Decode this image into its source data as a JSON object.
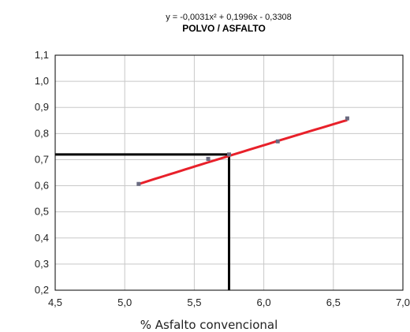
{
  "chart_data": {
    "type": "scatter",
    "equation": "y = -0,0031x² + 0,1996x - 0,3308",
    "title": "POLVO / ASFALTO",
    "xlabel": "% Asfalto convencional",
    "ylabel": "",
    "xlim": [
      4.5,
      7.0
    ],
    "ylim": [
      0.2,
      1.1
    ],
    "x_ticks": [
      "4,5",
      "5,0",
      "5,5",
      "6,0",
      "6,5",
      "7,0"
    ],
    "y_ticks": [
      "0,2",
      "0,3",
      "0,4",
      "0,5",
      "0,6",
      "0,7",
      "0,8",
      "0,9",
      "1,0",
      "1,1"
    ],
    "grid": true,
    "series": [
      {
        "type": "scatter",
        "x": [
          5.1,
          5.6,
          5.75,
          6.1,
          6.6
        ],
        "y": [
          0.607,
          0.703,
          0.72,
          0.77,
          0.858
        ]
      },
      {
        "type": "line",
        "fit": [
          -0.0031,
          0.1996,
          -0.3308
        ],
        "x_range": [
          5.1,
          6.6
        ]
      }
    ],
    "guide": {
      "x": 5.75,
      "y": 0.72
    },
    "colors": {
      "points": "#6a6a80",
      "fit": "#e8202a",
      "guide": "#000000",
      "grid": "#c8c8c8"
    }
  }
}
